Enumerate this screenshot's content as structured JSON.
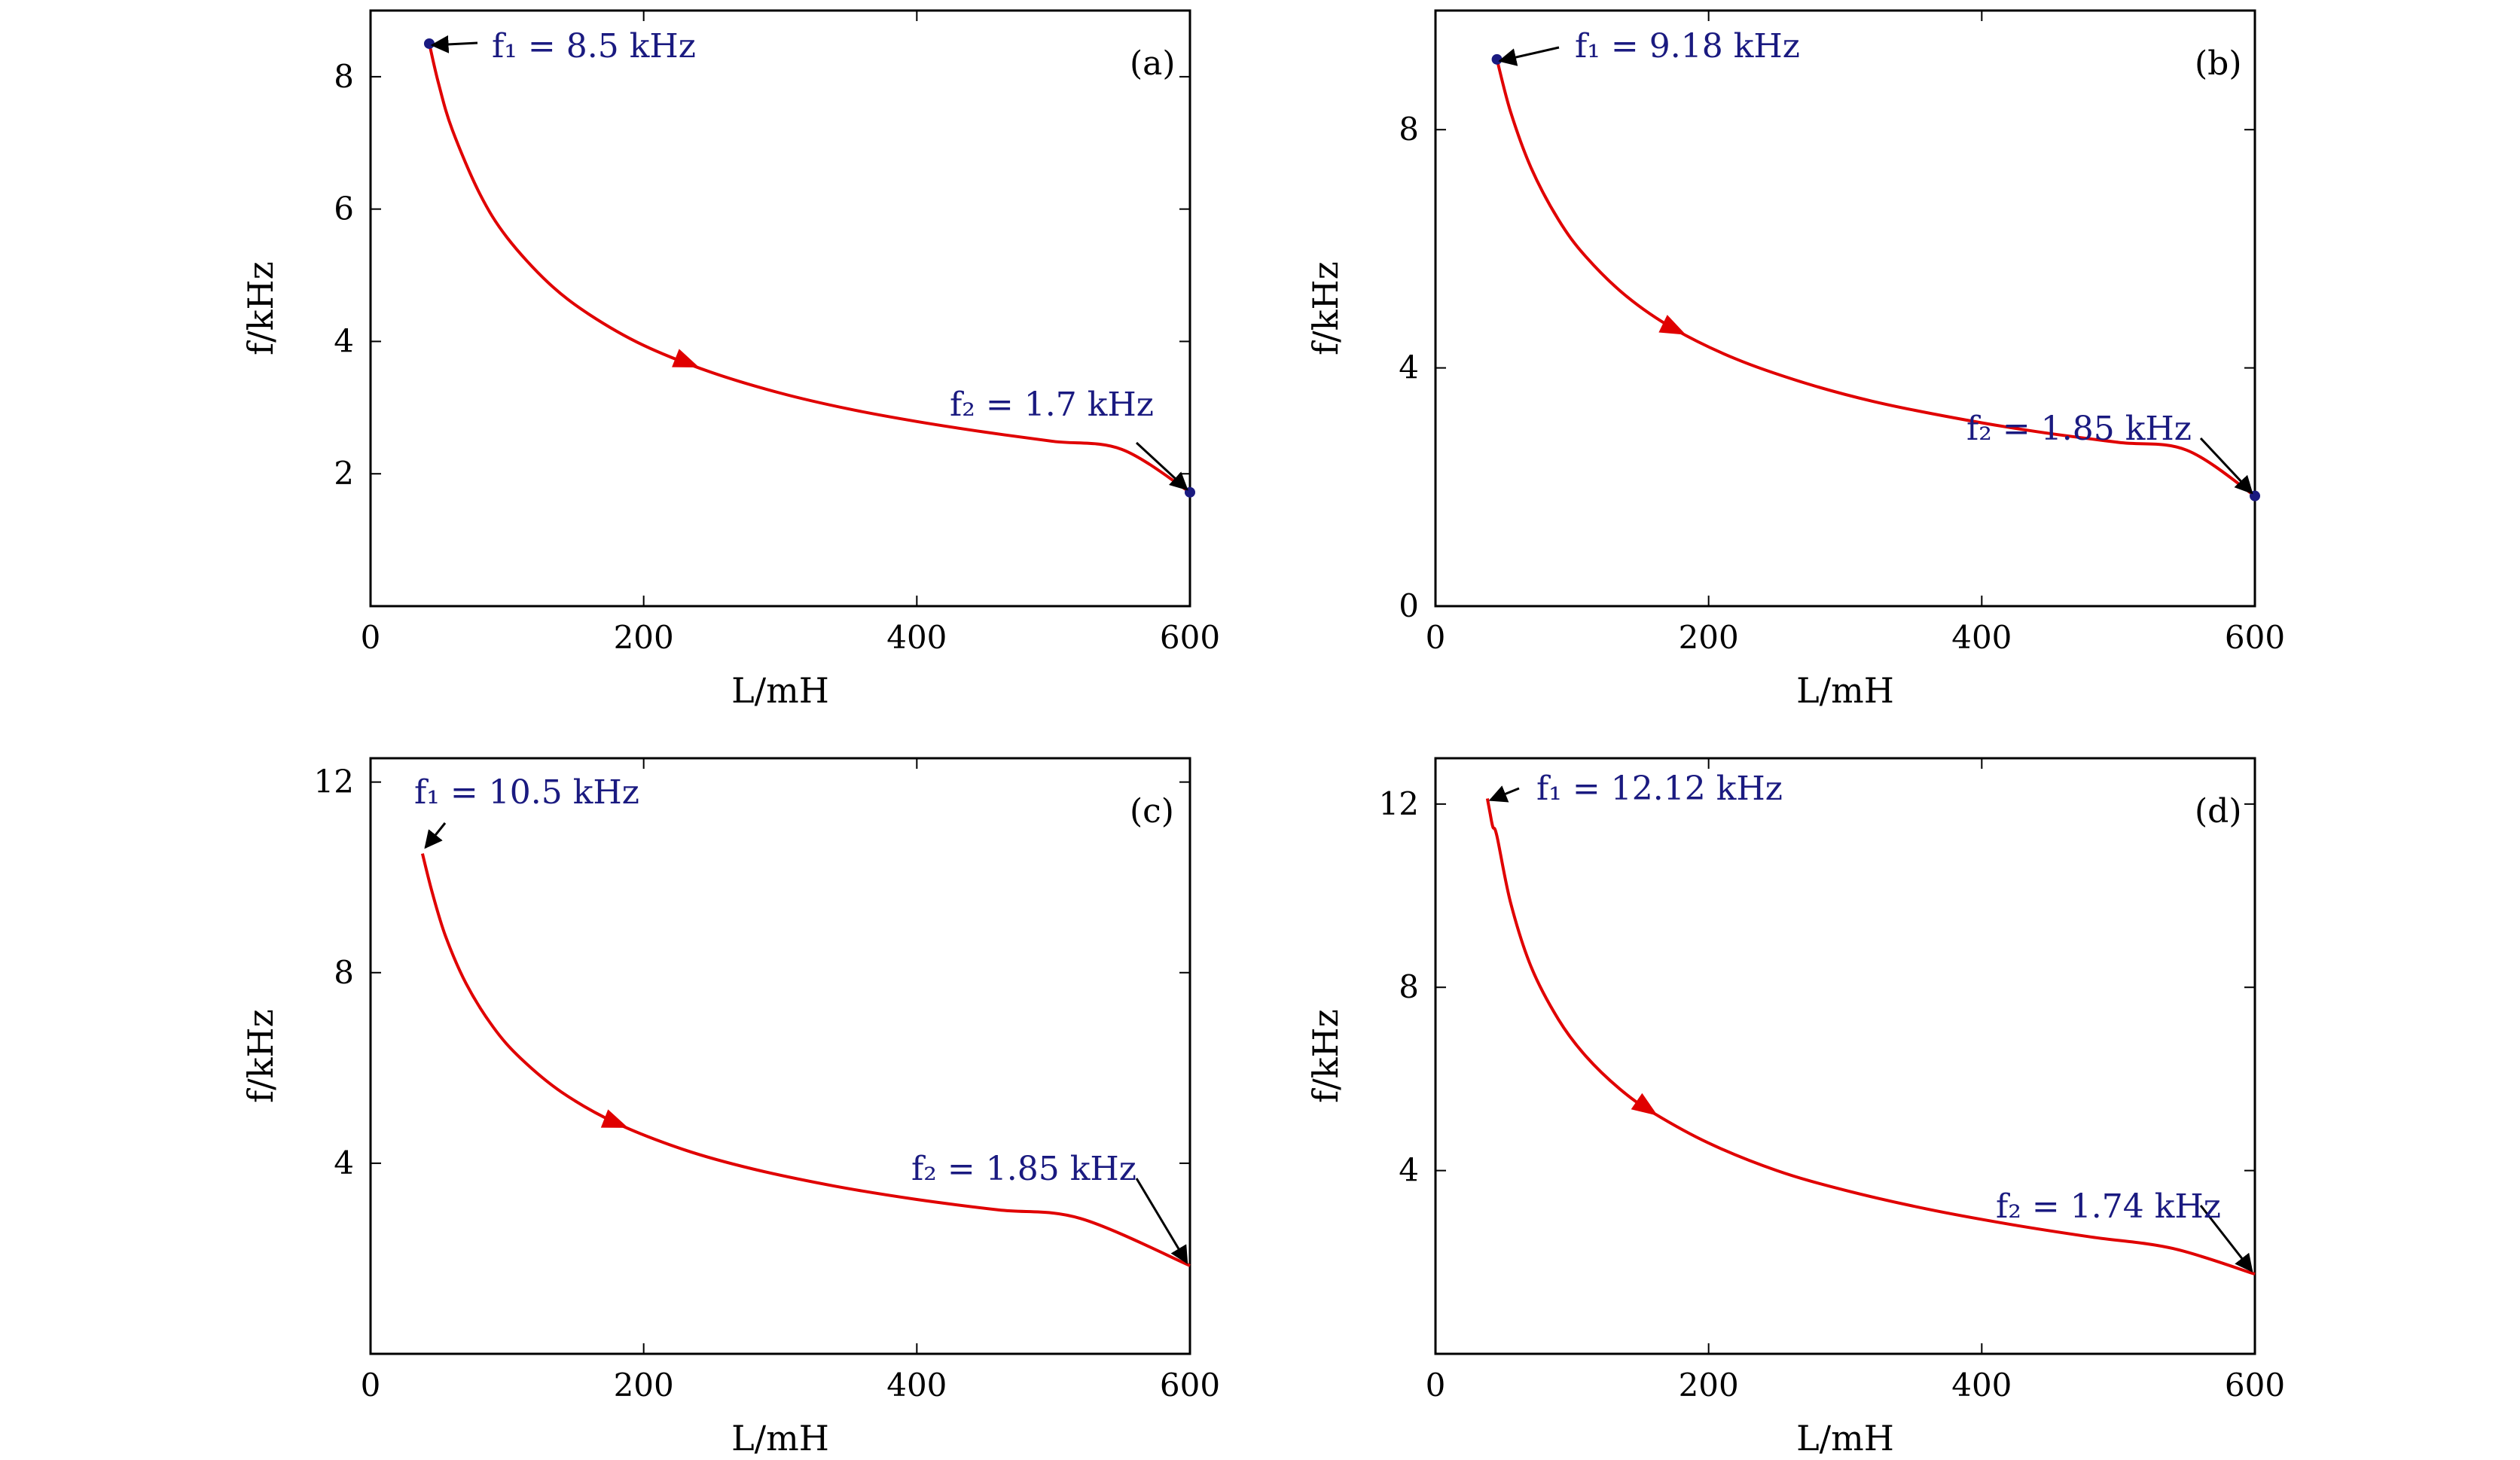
{
  "colors": {
    "curve": "#e00000",
    "annotation": "#1a1a80",
    "axis": "#000000",
    "marker": "#1a1a80"
  },
  "chart_data": [
    {
      "type": "line",
      "panel": "(a)",
      "xlabel": "L/mH",
      "ylabel": "f/kHz",
      "xlim": [
        0,
        600
      ],
      "ylim": [
        0,
        9
      ],
      "xticks": [
        "0",
        "200",
        "400",
        "600"
      ],
      "xtick_values": [
        0,
        200,
        400,
        600
      ],
      "yticks": [
        "2",
        "4",
        "6",
        "8"
      ],
      "ytick_values": [
        2,
        4,
        6,
        8
      ],
      "direction_arrow_at_x": 232,
      "start_marker": true,
      "series": [
        {
          "x": [
            43,
            50,
            60,
            80,
            100,
            130,
            160,
            200,
            250,
            300,
            350,
            400,
            450,
            500,
            550,
            600
          ],
          "y": [
            8.5,
            7.88,
            7.19,
            6.23,
            5.57,
            4.89,
            4.41,
            3.94,
            3.53,
            3.22,
            2.98,
            2.79,
            2.63,
            2.49,
            2.37,
            1.72
          ]
        }
      ],
      "annotations": [
        {
          "text": "f₁ = 8.5 kHz",
          "x": 43,
          "y": 8.5
        },
        {
          "text": "f₂ = 1.7 kHz",
          "x": 598,
          "y": 1.72
        }
      ]
    },
    {
      "type": "line",
      "panel": "(b)",
      "xlabel": "L/mH",
      "ylabel": "f/kHz",
      "xlim": [
        0,
        600
      ],
      "ylim": [
        0,
        10
      ],
      "xticks": [
        "0",
        "200",
        "400",
        "600"
      ],
      "xtick_values": [
        0,
        200,
        400,
        600
      ],
      "yticks": [
        "0",
        "4",
        "8"
      ],
      "ytick_values": [
        0,
        4,
        8
      ],
      "direction_arrow_at_x": 175,
      "start_marker": true,
      "series": [
        {
          "x": [
            45,
            55,
            70,
            90,
            110,
            140,
            175,
            220,
            270,
            320,
            380,
            440,
            500,
            550,
            600
          ],
          "y": [
            9.18,
            8.3,
            7.36,
            6.49,
            5.87,
            5.2,
            4.65,
            4.15,
            3.75,
            3.44,
            3.16,
            2.93,
            2.75,
            2.62,
            1.85
          ]
        }
      ],
      "annotations": [
        {
          "text": "f₁ = 9.18 kHz",
          "x": 45,
          "y": 9.18
        },
        {
          "text": "f₂ = 1.85 kHz",
          "x": 598,
          "y": 1.85
        }
      ]
    },
    {
      "type": "line",
      "panel": "(c)",
      "xlabel": "L/mH",
      "ylabel": "f/kHz",
      "xlim": [
        0,
        600
      ],
      "ylim": [
        0,
        12.5
      ],
      "xticks": [
        "0",
        "200",
        "400",
        "600"
      ],
      "xtick_values": [
        0,
        200,
        400,
        600
      ],
      "yticks": [
        "4",
        "8",
        "12"
      ],
      "ytick_values": [
        4,
        8,
        12
      ],
      "direction_arrow_at_x": 180,
      "start_marker": false,
      "series": [
        {
          "x": [
            38,
            45,
            55,
            70,
            90,
            110,
            140,
            180,
            230,
            280,
            340,
            400,
            460,
            520,
            600
          ],
          "y": [
            10.5,
            9.7,
            8.76,
            7.77,
            6.85,
            6.2,
            5.49,
            4.84,
            4.28,
            3.88,
            3.52,
            3.24,
            3.02,
            2.84,
            1.85
          ]
        }
      ],
      "annotations": [
        {
          "text": "f₁ = 10.5 kHz",
          "x": 38,
          "y": 10.5
        },
        {
          "text": "f₂ = 1.85 kHz",
          "x": 598,
          "y": 1.85
        }
      ]
    },
    {
      "type": "line",
      "panel": "(d)",
      "xlabel": "L/mH",
      "ylabel": "f/kHz",
      "xlim": [
        0,
        600
      ],
      "ylim": [
        0,
        13
      ],
      "xticks": [
        "0",
        "200",
        "400",
        "600"
      ],
      "xtick_values": [
        0,
        200,
        400,
        600
      ],
      "yticks": [
        "4",
        "8",
        "12"
      ],
      "ytick_values": [
        4,
        8,
        12
      ],
      "direction_arrow_at_x": 155,
      "start_marker": false,
      "series": [
        {
          "x": [
            38,
            40,
            42,
            45,
            55,
            70,
            90,
            110,
            135,
            160,
            200,
            250,
            300,
            360,
            420,
            480,
            540,
            600
          ],
          "y": [
            12.12,
            11.8,
            11.5,
            11.3,
            9.85,
            8.45,
            7.3,
            6.5,
            5.78,
            5.25,
            4.6,
            4.0,
            3.57,
            3.16,
            2.83,
            2.55,
            2.3,
            1.74
          ]
        }
      ],
      "annotations": [
        {
          "text": "f₁ = 12.12 kHz",
          "x": 38,
          "y": 12.12
        },
        {
          "text": "f₂ = 1.74 kHz",
          "x": 598,
          "y": 1.74
        }
      ]
    }
  ]
}
